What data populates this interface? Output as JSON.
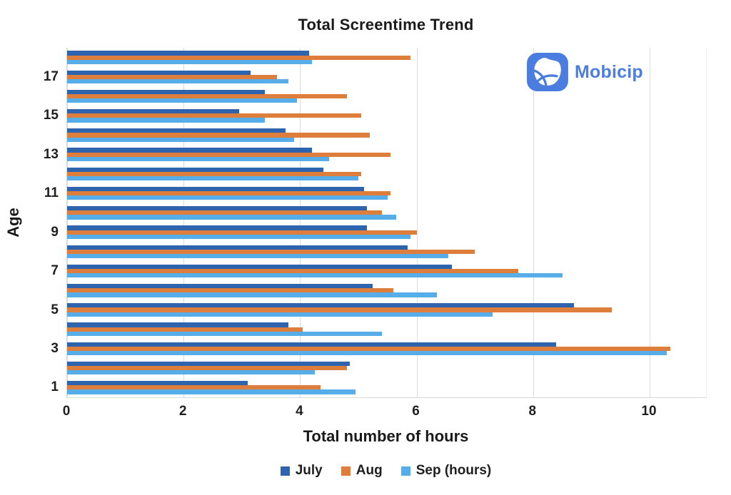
{
  "title": "Total Screentime Trend",
  "logo": {
    "text": "Mobicip",
    "brand_color": "#4b7ce0"
  },
  "colors": {
    "july": "#2e63ad",
    "aug": "#de7e3c",
    "sep": "#57ade8",
    "gridline": "#dcdcdc",
    "text": "#1a1a1a"
  },
  "chart_data": {
    "type": "bar",
    "orientation": "horizontal",
    "title": "Total Screentime Trend",
    "xlabel": "Total number of hours",
    "ylabel": "Age",
    "xlim": [
      0,
      11
    ],
    "x_ticks": [
      0,
      2,
      4,
      6,
      8,
      10
    ],
    "y_tick_labels": [
      1,
      3,
      5,
      7,
      9,
      11,
      13,
      15,
      17
    ],
    "grid": "vertical",
    "legend_position": "bottom",
    "categories": [
      1,
      2,
      3,
      4,
      5,
      6,
      7,
      8,
      9,
      10,
      11,
      12,
      13,
      14,
      15,
      16,
      17,
      18
    ],
    "categories_note": "age in years, displayed bottom (1) to top (18)",
    "series": [
      {
        "name": "July",
        "color": "#2e63ad",
        "values": [
          3.1,
          4.85,
          8.4,
          3.8,
          8.7,
          5.25,
          6.6,
          5.85,
          5.15,
          5.15,
          5.1,
          4.4,
          4.2,
          3.75,
          2.95,
          3.4,
          3.15,
          4.15
        ]
      },
      {
        "name": "Aug",
        "color": "#de7e3c",
        "values": [
          4.35,
          4.8,
          10.35,
          4.05,
          9.35,
          5.6,
          7.75,
          7.0,
          6.0,
          5.4,
          5.55,
          5.05,
          5.55,
          5.2,
          5.05,
          4.8,
          3.6,
          5.9
        ]
      },
      {
        "name": "Sep (hours)",
        "color": "#57ade8",
        "values": [
          4.95,
          4.25,
          10.3,
          5.4,
          7.3,
          6.35,
          8.5,
          6.55,
          5.9,
          5.65,
          5.5,
          5.0,
          4.5,
          3.9,
          3.4,
          3.95,
          3.8,
          4.2
        ]
      }
    ]
  }
}
